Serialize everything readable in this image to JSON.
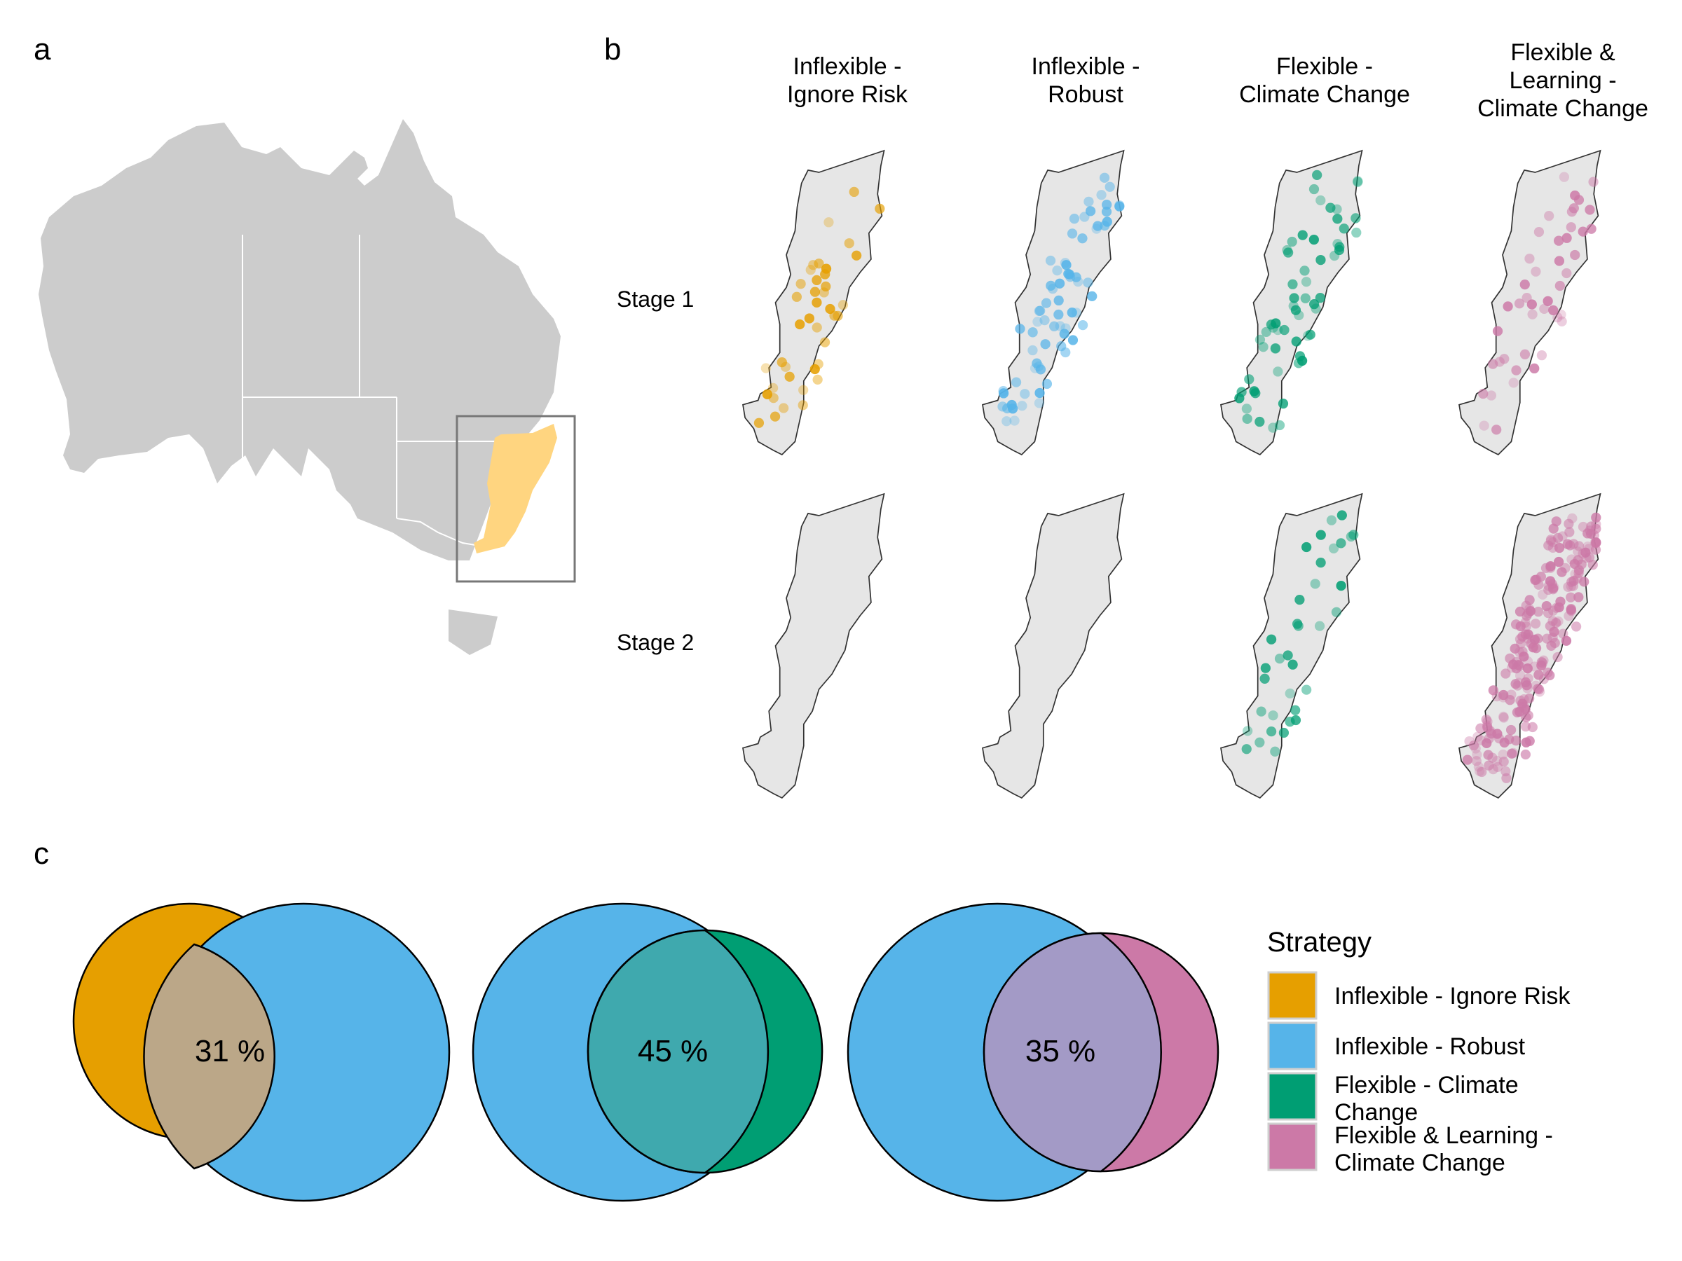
{
  "panels": {
    "a": {
      "letter": "a"
    },
    "b": {
      "letter": "b",
      "columns": [
        {
          "lines": [
            "Inflexible -",
            "Ignore Risk"
          ],
          "color": "#E69F00"
        },
        {
          "lines": [
            "Inflexible -",
            "Robust"
          ],
          "color": "#56B4E9"
        },
        {
          "lines": [
            "Flexible -",
            "Climate Change"
          ],
          "color": "#009E73"
        },
        {
          "lines": [
            "Flexible &",
            "Learning -",
            "Climate Change"
          ],
          "color": "#CC79A7"
        }
      ],
      "rows": [
        "Stage 1",
        "Stage 2"
      ]
    },
    "c": {
      "letter": "c",
      "overlaps": [
        "31 %",
        "45 %",
        "35 %"
      ]
    }
  },
  "legend": {
    "title": "Strategy",
    "items": [
      {
        "lines": [
          "Inflexible - Ignore Risk"
        ],
        "color": "#E69F00"
      },
      {
        "lines": [
          "Inflexible - Robust"
        ],
        "color": "#56B4E9"
      },
      {
        "lines": [
          "Flexible - Climate",
          "Change"
        ],
        "color": "#009E73"
      },
      {
        "lines": [
          "Flexible & Learning -",
          "Climate Change"
        ],
        "color": "#CC79A7"
      }
    ]
  },
  "colors": {
    "ignore_risk": "#E69F00",
    "robust": "#56B4E9",
    "climate_change": "#009E73",
    "learning": "#CC79A7",
    "study_region": "#FFD580",
    "land": "#CCCCCC"
  }
}
